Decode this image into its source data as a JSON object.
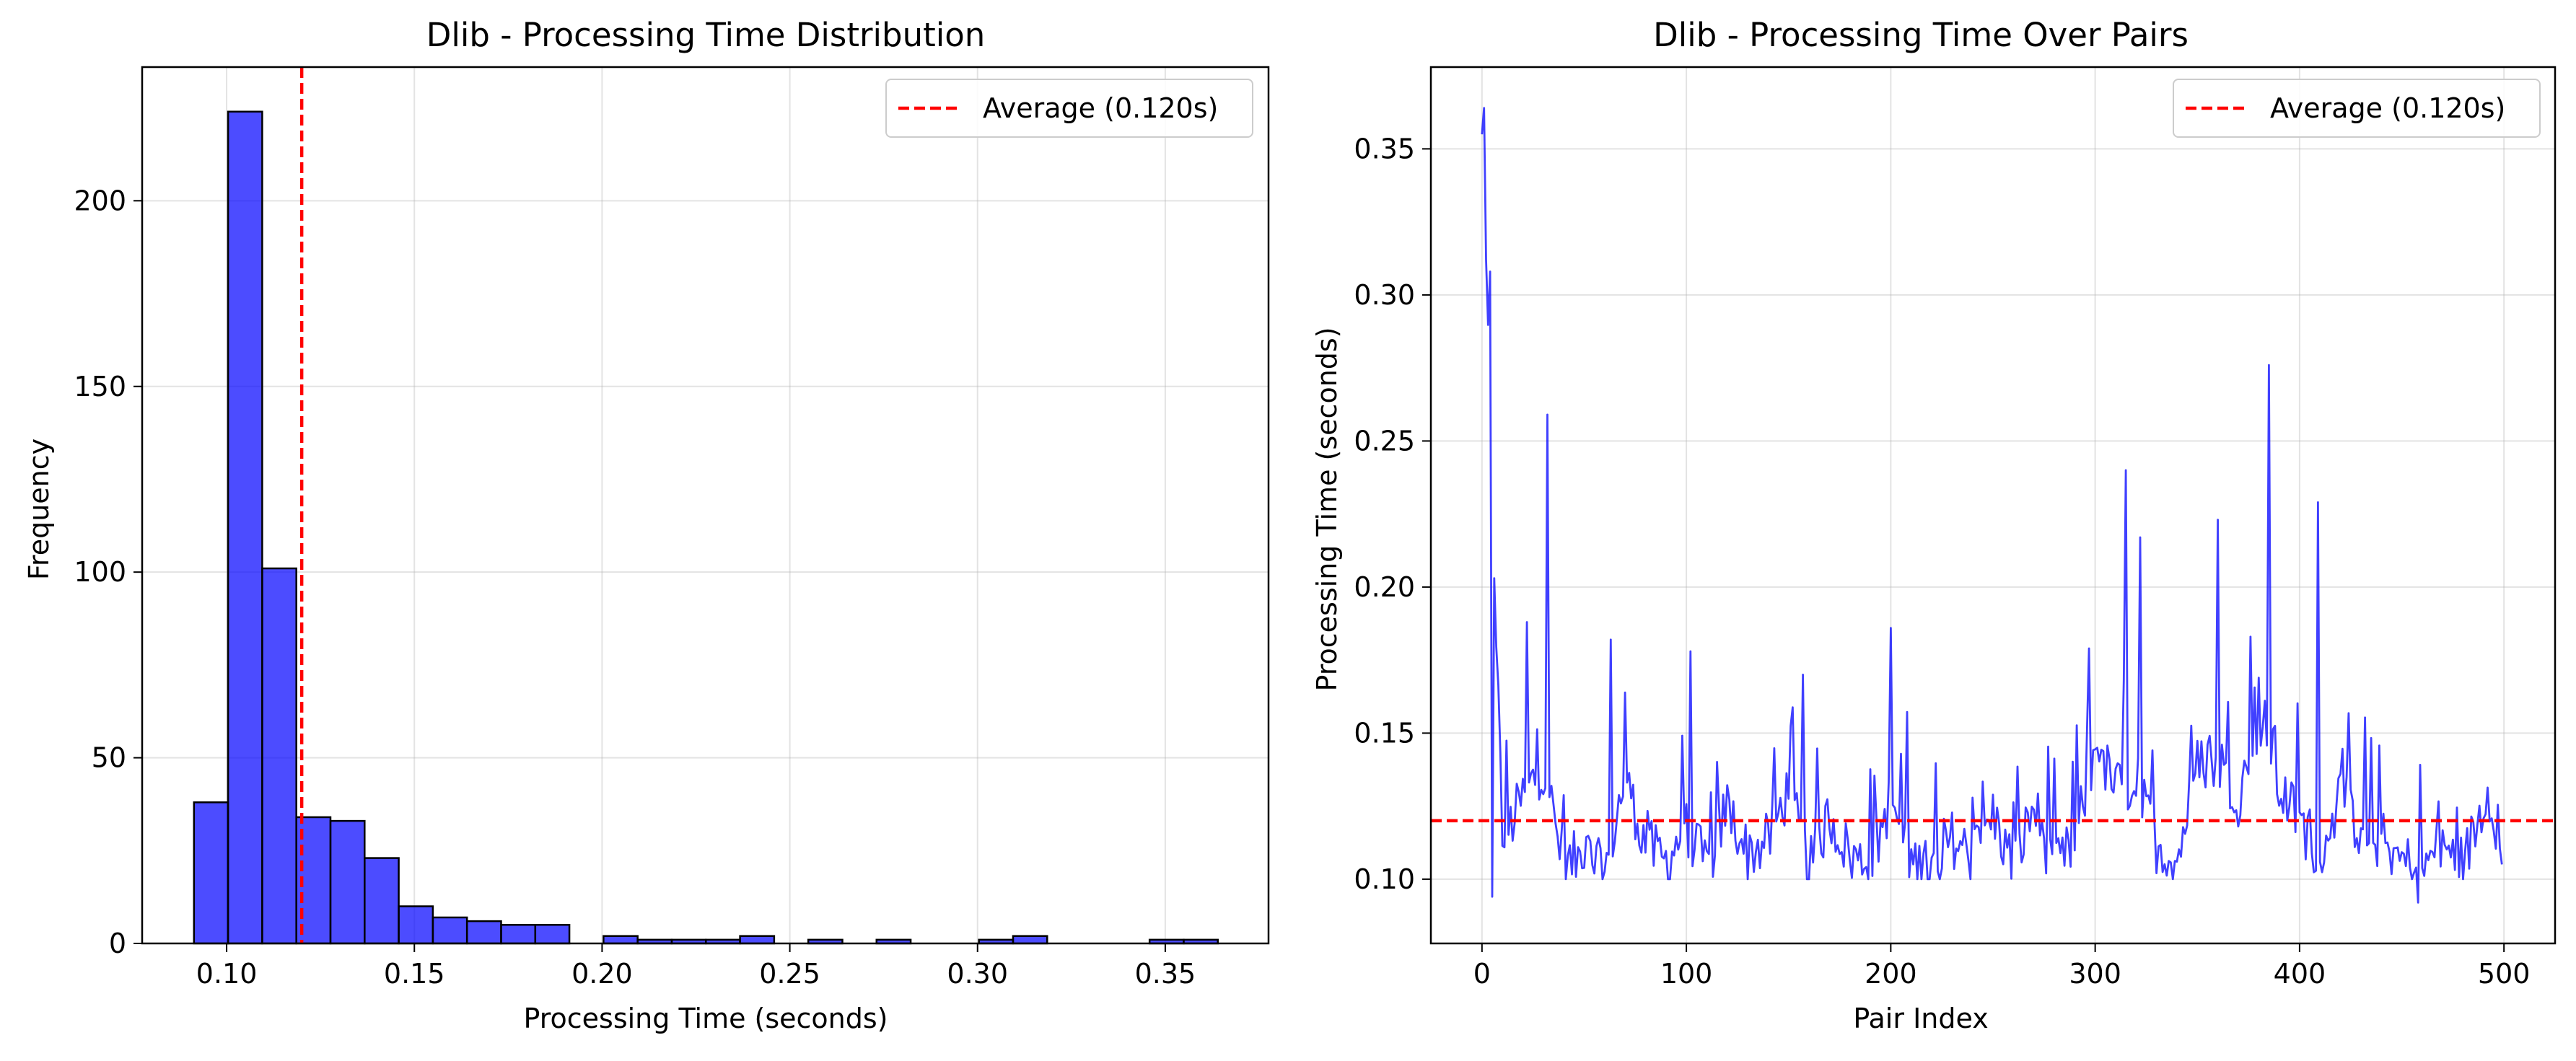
{
  "chart_data": [
    {
      "type": "bar",
      "title": "Dlib - Processing Time Distribution",
      "xlabel": "Processing Time (seconds)",
      "ylabel": "Frequency",
      "xlim": [
        0.0775,
        0.3775
      ],
      "ylim": [
        0,
        236
      ],
      "xticks": [
        0.1,
        0.15,
        0.2,
        0.25,
        0.3,
        0.35
      ],
      "xtick_labels": [
        "0.10",
        "0.15",
        "0.20",
        "0.25",
        "0.30",
        "0.35"
      ],
      "yticks": [
        0,
        50,
        100,
        150,
        200
      ],
      "ytick_labels": [
        "0",
        "50",
        "100",
        "150",
        "200"
      ],
      "grid": true,
      "bar_color": "#0000ff",
      "bar_edge_color": "#000000",
      "bins": {
        "start": 0.0913,
        "width": 0.00909,
        "counts": [
          38,
          224,
          101,
          34,
          33,
          23,
          10,
          7,
          6,
          5,
          5,
          0,
          2,
          1,
          1,
          1,
          2,
          0,
          1,
          0,
          1,
          0,
          0,
          1,
          2,
          0,
          0,
          0,
          1,
          1
        ]
      },
      "average_line": {
        "value": 0.12,
        "color": "#ff0000",
        "label": "Average (0.120s)"
      },
      "legend_position": "top-right"
    },
    {
      "type": "line",
      "title": "Dlib - Processing Time Over Pairs",
      "xlabel": "Pair Index",
      "ylabel": "Processing Time (seconds)",
      "xlim": [
        -25,
        525
      ],
      "ylim": [
        0.078,
        0.378
      ],
      "xticks": [
        0,
        100,
        200,
        300,
        400,
        500
      ],
      "xtick_labels": [
        "0",
        "100",
        "200",
        "300",
        "400",
        "500"
      ],
      "yticks": [
        0.1,
        0.15,
        0.2,
        0.25,
        0.3,
        0.35
      ],
      "ytick_labels": [
        "0.10",
        "0.15",
        "0.20",
        "0.25",
        "0.30",
        "0.35"
      ],
      "grid": true,
      "line_color": "#0000ff",
      "series": [
        {
          "x_step": 10,
          "peaks": [
            [
              0,
              0.355
            ],
            [
              1,
              0.364
            ],
            [
              2,
              0.312
            ],
            [
              4,
              0.308
            ],
            [
              5,
              0.094
            ],
            [
              32,
              0.259
            ],
            [
              385,
              0.276
            ],
            [
              315,
              0.24
            ],
            [
              409,
              0.229
            ],
            [
              360,
              0.223
            ],
            [
              322,
              0.217
            ],
            [
              200,
              0.186
            ],
            [
              22,
              0.188
            ],
            [
              63,
              0.182
            ],
            [
              102,
              0.178
            ],
            [
              157,
              0.17
            ],
            [
              297,
              0.179
            ],
            [
              376,
              0.183
            ],
            [
              458,
              0.092
            ]
          ],
          "values": [
            0.355,
            0.112,
            0.128,
            0.139,
            0.104,
            0.109,
            0.102,
            0.135,
            0.112,
            0.106,
            0.118,
            0.104,
            0.125,
            0.109,
            0.113,
            0.131,
            0.103,
            0.122,
            0.108,
            0.105,
            0.128,
            0.106,
            0.103,
            0.114,
            0.108,
            0.122,
            0.104,
            0.125,
            0.103,
            0.112,
            0.146,
            0.131,
            0.133,
            0.112,
            0.106,
            0.139,
            0.142,
            0.128,
            0.154,
            0.131,
            0.12,
            0.108,
            0.129,
            0.116,
            0.113,
            0.106,
            0.104,
            0.111,
            0.105,
            0.126,
            0.112
          ]
        }
      ],
      "average_line": {
        "value": 0.12,
        "color": "#ff0000",
        "label": "Average (0.120s)"
      },
      "legend_position": "top-right"
    }
  ]
}
